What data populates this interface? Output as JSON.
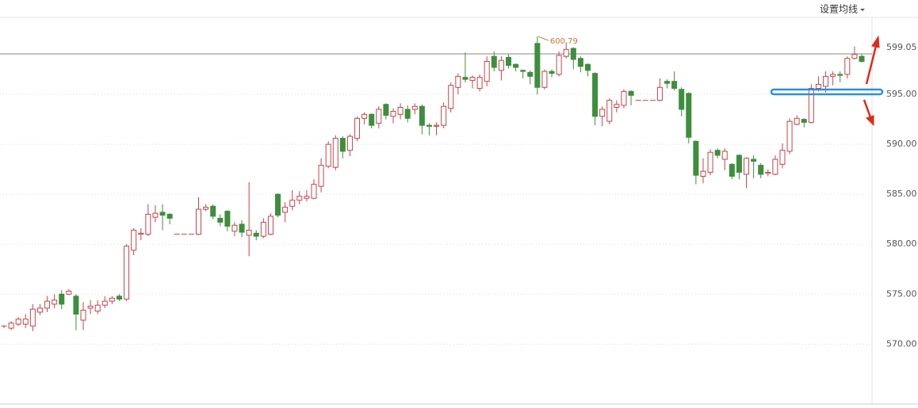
{
  "chart_data": {
    "type": "candlestick",
    "settings_label": "设置均线",
    "ylim": [
      564,
      602.7
    ],
    "yticks": [
      {
        "value": 570,
        "label": "570.00"
      },
      {
        "value": 575,
        "label": "575.00"
      },
      {
        "value": 580,
        "label": "580.00"
      },
      {
        "value": 585,
        "label": "585.00"
      },
      {
        "value": 590,
        "label": "590.00"
      },
      {
        "value": 595,
        "label": "595.00"
      }
    ],
    "reference_line": {
      "value": 599.05,
      "label": "599.05"
    },
    "max_annotation": {
      "value": 600.79,
      "label": "600.79"
    },
    "grid": true,
    "up_color": "#c8444a",
    "down_color": "#3d8f3d",
    "open": [
      571.8,
      571.6,
      572.0,
      572.0,
      571.8,
      573.2,
      573.6,
      574.0,
      575.0,
      575.0,
      574.8,
      572.4,
      573.6,
      573.3,
      573.9,
      574.3,
      574.8,
      574.5,
      579.4,
      581.0,
      581.0,
      582.7,
      583.2,
      583.0,
      581.0,
      581.0,
      581.0,
      581.0,
      583.5,
      583.8,
      582.6,
      583.3,
      581.3,
      582.0,
      580.9,
      581.1,
      580.8,
      581.0,
      585.0,
      583.2,
      583.8,
      584.4,
      584.6,
      584.6,
      585.8,
      587.8,
      587.7,
      590.6,
      589.4,
      590.6,
      592.6,
      593.0,
      592.1,
      594.0,
      592.8,
      593.0,
      593.5,
      593.5,
      593.8,
      591.9,
      591.8,
      591.9,
      593.6,
      595.7,
      596.7,
      596.4,
      595.6,
      596.3,
      598.8,
      597.4,
      598.7,
      598.0,
      597.4,
      597.2,
      600.1,
      595.7,
      597.3,
      597.0,
      598.8,
      599.6,
      598.6,
      598.0,
      597.1,
      592.8,
      592.3,
      593.7,
      593.9,
      595.3,
      594.4,
      594.4,
      594.4,
      594.4,
      596.3,
      596.3,
      595.5,
      595.1,
      590.3,
      586.8,
      587.2,
      589.4,
      588.5,
      588.0,
      588.9,
      587.0,
      588.5,
      587.9,
      587.1,
      587.0,
      588.0,
      589.3,
      592.0,
      592.5,
      592.2,
      595.6,
      595.8,
      596.8,
      597.0,
      597.0,
      598.6,
      598.8
    ],
    "high": [
      571.9,
      572.3,
      572.7,
      573.0,
      574.0,
      574.0,
      574.8,
      575.0,
      575.4,
      575.5,
      575.0,
      574.2,
      574.4,
      574.4,
      574.8,
      574.8,
      575.0,
      580.0,
      581.6,
      581.6,
      584.0,
      583.9,
      584.0,
      583.1,
      581.0,
      581.0,
      581.0,
      584.7,
      584.0,
      584.0,
      583.0,
      583.4,
      582.2,
      582.4,
      586.2,
      581.4,
      582.6,
      583.1,
      585.1,
      584.2,
      585.4,
      585.3,
      585.4,
      586.5,
      588.6,
      590.3,
      590.9,
      590.8,
      591.0,
      592.8,
      593.2,
      593.1,
      593.8,
      594.1,
      593.6,
      594.1,
      593.9,
      594.1,
      594.0,
      592.1,
      592.2,
      594.2,
      596.2,
      597.1,
      599.2,
      596.9,
      597.0,
      598.8,
      599.3,
      598.8,
      599.0,
      598.1,
      597.5,
      597.4,
      600.79,
      597.5,
      597.5,
      599.3,
      600.2,
      599.7,
      598.8,
      598.1,
      597.2,
      593.8,
      594.6,
      594.4,
      595.5,
      595.4,
      594.4,
      594.4,
      594.4,
      596.6,
      596.5,
      597.3,
      595.7,
      595.2,
      590.4,
      588.6,
      589.5,
      589.6,
      589.6,
      588.1,
      589.0,
      588.7,
      588.9,
      588.1,
      587.5,
      588.9,
      590.1,
      592.6,
      592.9,
      592.6,
      596.0,
      596.8,
      597.3,
      597.3,
      597.3,
      598.8,
      599.8,
      599.0
    ],
    "low": [
      571.6,
      571.4,
      571.8,
      571.6,
      571.3,
      572.9,
      573.2,
      573.6,
      573.5,
      574.9,
      571.4,
      571.4,
      573.0,
      573.0,
      573.6,
      574.0,
      574.3,
      574.3,
      578.9,
      580.4,
      580.8,
      582.2,
      581.4,
      582.0,
      581.0,
      581.0,
      581.0,
      580.9,
      583.3,
      582.5,
      581.8,
      581.3,
      580.8,
      580.7,
      578.8,
      580.4,
      580.6,
      580.9,
      582.7,
      582.2,
      583.4,
      584.0,
      584.3,
      584.5,
      585.2,
      587.6,
      587.4,
      588.6,
      588.8,
      590.3,
      592.0,
      591.6,
      591.6,
      592.5,
      592.1,
      592.5,
      592.2,
      593.0,
      591.0,
      590.9,
      590.9,
      591.6,
      593.2,
      595.0,
      596.2,
      595.6,
      595.3,
      595.8,
      597.3,
      596.4,
      597.6,
      597.3,
      596.6,
      596.0,
      595.0,
      595.5,
      596.7,
      596.8,
      598.6,
      597.5,
      597.2,
      596.8,
      591.9,
      591.8,
      592.0,
      593.2,
      593.6,
      593.9,
      594.4,
      594.4,
      594.4,
      594.3,
      595.6,
      595.4,
      592.8,
      590.1,
      586.0,
      586.1,
      586.9,
      588.6,
      587.4,
      586.5,
      586.5,
      585.6,
      586.6,
      586.6,
      586.8,
      586.9,
      587.6,
      589.0,
      591.9,
      591.7,
      592.1,
      595.3,
      595.2,
      595.9,
      596.2,
      596.6,
      598.5,
      598.2
    ],
    "close": [
      571.8,
      572.1,
      572.5,
      572.5,
      573.5,
      573.6,
      574.3,
      574.4,
      574.0,
      575.3,
      573.0,
      573.4,
      573.8,
      573.9,
      574.3,
      574.6,
      574.5,
      579.8,
      581.4,
      581.1,
      583.0,
      583.1,
      582.9,
      582.6,
      581.0,
      581.0,
      581.0,
      583.5,
      583.7,
      582.8,
      582.2,
      581.8,
      581.9,
      581.2,
      581.4,
      580.8,
      582.2,
      582.8,
      582.9,
      583.7,
      584.4,
      584.8,
      584.8,
      586.0,
      587.9,
      590.0,
      590.6,
      589.3,
      590.8,
      592.6,
      593.0,
      591.9,
      593.5,
      592.9,
      593.3,
      593.7,
      592.6,
      593.8,
      591.9,
      591.8,
      591.9,
      593.8,
      595.9,
      596.8,
      596.5,
      596.7,
      596.7,
      598.3,
      597.7,
      598.4,
      597.9,
      597.7,
      597.3,
      596.8,
      595.7,
      597.3,
      597.1,
      598.9,
      599.5,
      598.5,
      597.8,
      597.4,
      592.8,
      593.5,
      594.4,
      594.0,
      595.3,
      594.9,
      594.4,
      594.4,
      594.4,
      595.7,
      596.1,
      595.6,
      593.5,
      590.7,
      586.9,
      587.3,
      589.2,
      588.9,
      589.3,
      586.8,
      587.2,
      588.6,
      588.3,
      587.0,
      587.2,
      588.5,
      589.4,
      592.3,
      592.6,
      592.2,
      595.6,
      596.0,
      596.8,
      597.0,
      596.9,
      598.6,
      599.0,
      598.3
    ]
  }
}
